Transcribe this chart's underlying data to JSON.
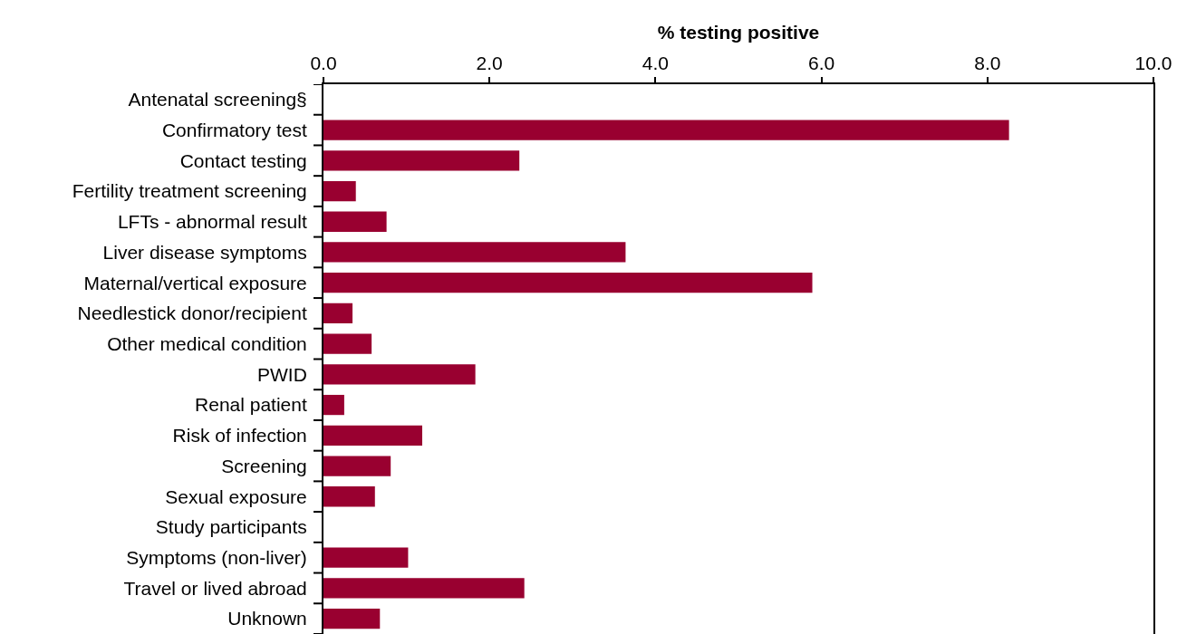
{
  "chart_data": {
    "type": "bar",
    "orientation": "horizontal",
    "xlabel": "% testing positive",
    "categories": [
      "Antenatal screening§",
      "Confirmatory test",
      "Contact testing",
      "Fertility treatment screening",
      "LFTs - abnormal result",
      "Liver disease symptoms",
      "Maternal/vertical exposure",
      "Needlestick donor/recipient",
      "Other medical condition",
      "PWID",
      "Renal patient",
      "Risk of infection",
      "Screening",
      "Sexual exposure",
      "Study participants",
      "Symptoms (non-liver)",
      "Travel or lived abroad",
      "Unknown"
    ],
    "values": [
      0,
      8.26,
      2.36,
      0.39,
      0.76,
      3.64,
      5.89,
      0.35,
      0.58,
      1.83,
      0.25,
      1.19,
      0.81,
      0.62,
      0,
      1.02,
      2.42,
      0.68
    ],
    "color": "#990030",
    "xlim": [
      0,
      10
    ],
    "xticks": [
      {
        "value": 0,
        "label": "0.0"
      },
      {
        "value": 2,
        "label": "2.0"
      },
      {
        "value": 4,
        "label": "4.0"
      },
      {
        "value": 6,
        "label": "6.0"
      },
      {
        "value": 8,
        "label": "8.0"
      },
      {
        "value": 10,
        "label": "10.0"
      }
    ],
    "grid": false,
    "legend": false
  }
}
